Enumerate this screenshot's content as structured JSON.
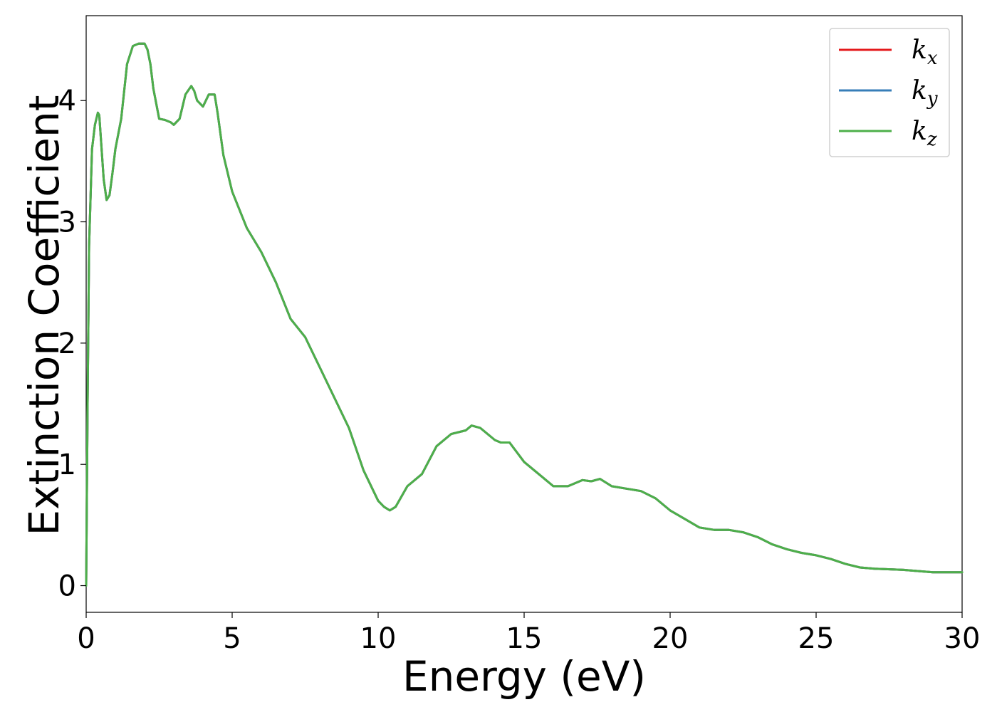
{
  "chart_data": {
    "type": "line",
    "title": "",
    "xlabel": "Energy (eV)",
    "ylabel": "Extinction Coefficient",
    "xlim": [
      0,
      30
    ],
    "ylim": [
      -0.22,
      4.7
    ],
    "xticks": [
      0,
      5,
      10,
      15,
      20,
      25,
      30
    ],
    "yticks": [
      0,
      1,
      2,
      3,
      4
    ],
    "grid": false,
    "legend_position": "top-right",
    "x": [
      0,
      0.05,
      0.1,
      0.2,
      0.3,
      0.4,
      0.45,
      0.5,
      0.6,
      0.7,
      0.8,
      0.9,
      1.0,
      1.2,
      1.4,
      1.6,
      1.8,
      2.0,
      2.1,
      2.2,
      2.3,
      2.5,
      2.7,
      2.9,
      3.0,
      3.2,
      3.4,
      3.6,
      3.7,
      3.8,
      4.0,
      4.2,
      4.4,
      4.5,
      4.7,
      5.0,
      5.5,
      6.0,
      6.5,
      7.0,
      7.5,
      8.0,
      8.5,
      9.0,
      9.5,
      10.0,
      10.2,
      10.4,
      10.6,
      11.0,
      11.5,
      12.0,
      12.5,
      13.0,
      13.2,
      13.5,
      14.0,
      14.2,
      14.5,
      15.0,
      15.5,
      16.0,
      16.5,
      17.0,
      17.3,
      17.6,
      18.0,
      18.5,
      19.0,
      19.5,
      20.0,
      20.5,
      21.0,
      21.5,
      22.0,
      22.5,
      23.0,
      23.5,
      24.0,
      24.5,
      25.0,
      25.5,
      26.0,
      26.5,
      27.0,
      28.0,
      29.0,
      30.0
    ],
    "series": [
      {
        "name": "k_x",
        "color": "#e41a1c",
        "values": [
          0.0,
          1.5,
          2.8,
          3.6,
          3.8,
          3.9,
          3.88,
          3.7,
          3.35,
          3.18,
          3.22,
          3.4,
          3.6,
          3.85,
          4.3,
          4.45,
          4.47,
          4.47,
          4.42,
          4.3,
          4.1,
          3.85,
          3.84,
          3.82,
          3.8,
          3.85,
          4.05,
          4.12,
          4.08,
          4.0,
          3.95,
          4.05,
          4.05,
          3.9,
          3.55,
          3.25,
          2.95,
          2.75,
          2.5,
          2.2,
          2.05,
          1.8,
          1.55,
          1.3,
          0.95,
          0.7,
          0.65,
          0.62,
          0.65,
          0.82,
          0.92,
          1.15,
          1.25,
          1.28,
          1.32,
          1.3,
          1.2,
          1.18,
          1.18,
          1.02,
          0.92,
          0.82,
          0.82,
          0.87,
          0.86,
          0.88,
          0.82,
          0.8,
          0.78,
          0.72,
          0.62,
          0.55,
          0.48,
          0.46,
          0.46,
          0.44,
          0.4,
          0.34,
          0.3,
          0.27,
          0.25,
          0.22,
          0.18,
          0.15,
          0.14,
          0.13,
          0.11,
          0.11
        ]
      },
      {
        "name": "k_y",
        "color": "#377eb8",
        "values": [
          0.0,
          1.5,
          2.8,
          3.6,
          3.8,
          3.9,
          3.88,
          3.7,
          3.35,
          3.18,
          3.22,
          3.4,
          3.6,
          3.85,
          4.3,
          4.45,
          4.47,
          4.47,
          4.42,
          4.3,
          4.1,
          3.85,
          3.84,
          3.82,
          3.8,
          3.85,
          4.05,
          4.12,
          4.08,
          4.0,
          3.95,
          4.05,
          4.05,
          3.9,
          3.55,
          3.25,
          2.95,
          2.75,
          2.5,
          2.2,
          2.05,
          1.8,
          1.55,
          1.3,
          0.95,
          0.7,
          0.65,
          0.62,
          0.65,
          0.82,
          0.92,
          1.15,
          1.25,
          1.28,
          1.32,
          1.3,
          1.2,
          1.18,
          1.18,
          1.02,
          0.92,
          0.82,
          0.82,
          0.87,
          0.86,
          0.88,
          0.82,
          0.8,
          0.78,
          0.72,
          0.62,
          0.55,
          0.48,
          0.46,
          0.46,
          0.44,
          0.4,
          0.34,
          0.3,
          0.27,
          0.25,
          0.22,
          0.18,
          0.15,
          0.14,
          0.13,
          0.11,
          0.11
        ]
      },
      {
        "name": "k_z",
        "color": "#4daf4a",
        "values": [
          0.0,
          1.5,
          2.8,
          3.6,
          3.8,
          3.9,
          3.88,
          3.7,
          3.35,
          3.18,
          3.22,
          3.4,
          3.6,
          3.85,
          4.3,
          4.45,
          4.47,
          4.47,
          4.42,
          4.3,
          4.1,
          3.85,
          3.84,
          3.82,
          3.8,
          3.85,
          4.05,
          4.12,
          4.08,
          4.0,
          3.95,
          4.05,
          4.05,
          3.9,
          3.55,
          3.25,
          2.95,
          2.75,
          2.5,
          2.2,
          2.05,
          1.8,
          1.55,
          1.3,
          0.95,
          0.7,
          0.65,
          0.62,
          0.65,
          0.82,
          0.92,
          1.15,
          1.25,
          1.28,
          1.32,
          1.3,
          1.2,
          1.18,
          1.18,
          1.02,
          0.92,
          0.82,
          0.82,
          0.87,
          0.86,
          0.88,
          0.82,
          0.8,
          0.78,
          0.72,
          0.62,
          0.55,
          0.48,
          0.46,
          0.46,
          0.44,
          0.4,
          0.34,
          0.3,
          0.27,
          0.25,
          0.22,
          0.18,
          0.15,
          0.14,
          0.13,
          0.11,
          0.11
        ]
      }
    ],
    "legend": [
      {
        "base": "k",
        "sub": "x",
        "color": "#e41a1c"
      },
      {
        "base": "k",
        "sub": "y",
        "color": "#377eb8"
      },
      {
        "base": "k",
        "sub": "z",
        "color": "#4daf4a"
      }
    ]
  }
}
